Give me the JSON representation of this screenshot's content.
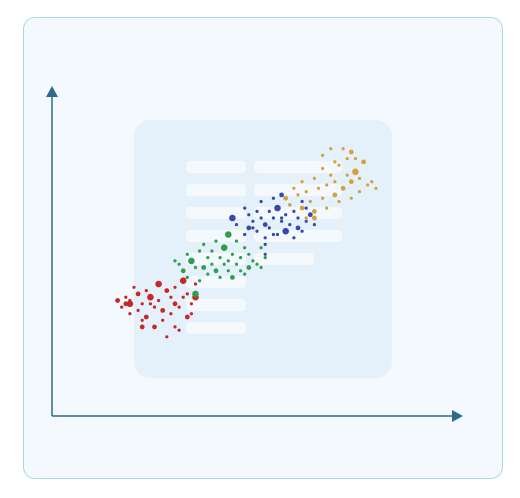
{
  "chart_data": {
    "type": "scatter",
    "title": "",
    "xlabel": "",
    "ylabel": "",
    "xlim": [
      0,
      100
    ],
    "ylim": [
      0,
      100
    ],
    "grid": false,
    "legend": "none",
    "axis_color": "#2d6a8e",
    "series": [
      {
        "color": "#c62828",
        "points": [
          [
            16,
            35
          ],
          [
            17,
            33
          ],
          [
            18,
            34
          ],
          [
            19,
            31
          ],
          [
            19,
            34
          ],
          [
            20,
            39
          ],
          [
            21,
            32
          ],
          [
            21,
            37
          ],
          [
            22,
            29
          ],
          [
            22,
            34
          ],
          [
            23,
            30
          ],
          [
            23,
            38
          ],
          [
            24,
            36
          ],
          [
            25,
            33
          ],
          [
            25,
            27
          ],
          [
            26,
            40
          ],
          [
            26,
            35
          ],
          [
            27,
            29
          ],
          [
            27,
            32
          ],
          [
            28,
            38
          ],
          [
            29,
            36
          ],
          [
            29,
            31
          ],
          [
            30,
            39
          ],
          [
            30,
            34
          ],
          [
            31,
            33
          ],
          [
            32,
            41
          ],
          [
            32,
            36
          ],
          [
            33,
            30
          ],
          [
            33,
            37
          ],
          [
            34,
            34
          ],
          [
            35,
            36
          ],
          [
            35,
            40
          ],
          [
            28,
            24
          ],
          [
            30,
            27
          ],
          [
            31,
            26
          ],
          [
            22,
            27
          ],
          [
            18,
            36
          ],
          [
            19,
            35
          ],
          [
            34,
            31
          ],
          [
            24,
            34
          ]
        ],
        "sizes": [
          2,
          1,
          2,
          1,
          3,
          1,
          1,
          2,
          1,
          1,
          2,
          1,
          3,
          1,
          2,
          3,
          1,
          1,
          2,
          2,
          1,
          1,
          1,
          2,
          1,
          3,
          1,
          2,
          1,
          1,
          3,
          1,
          1,
          1,
          1,
          2,
          1,
          1,
          1,
          1
        ]
      },
      {
        "color": "#2e9e4f",
        "points": [
          [
            30,
            47
          ],
          [
            31,
            46
          ],
          [
            32,
            44
          ],
          [
            33,
            49
          ],
          [
            33,
            42
          ],
          [
            34,
            47
          ],
          [
            35,
            45
          ],
          [
            36,
            50
          ],
          [
            36,
            41
          ],
          [
            37,
            52
          ],
          [
            37,
            45
          ],
          [
            38,
            48
          ],
          [
            38,
            43
          ],
          [
            39,
            50
          ],
          [
            39,
            46
          ],
          [
            40,
            53
          ],
          [
            40,
            44
          ],
          [
            41,
            48
          ],
          [
            41,
            42
          ],
          [
            42,
            46
          ],
          [
            42,
            51
          ],
          [
            43,
            44
          ],
          [
            43,
            47
          ],
          [
            44,
            49
          ],
          [
            44,
            42
          ],
          [
            45,
            53
          ],
          [
            45,
            46
          ],
          [
            46,
            44
          ],
          [
            46,
            48
          ],
          [
            47,
            51
          ],
          [
            47,
            43
          ],
          [
            48,
            45
          ],
          [
            48,
            49
          ],
          [
            49,
            47
          ],
          [
            50,
            46
          ],
          [
            51,
            45
          ],
          [
            51,
            51
          ],
          [
            52,
            48
          ],
          [
            35,
            37
          ],
          [
            43,
            55
          ]
        ],
        "sizes": [
          1,
          1,
          2,
          1,
          1,
          3,
          1,
          1,
          1,
          1,
          2,
          1,
          1,
          1,
          1,
          1,
          2,
          1,
          1,
          1,
          3,
          1,
          1,
          1,
          2,
          1,
          1,
          1,
          1,
          1,
          1,
          2,
          1,
          1,
          1,
          1,
          1,
          1,
          3,
          3
        ]
      },
      {
        "color": "#3949ab",
        "points": [
          [
            44,
            60
          ],
          [
            45,
            58
          ],
          [
            47,
            63
          ],
          [
            47,
            55
          ],
          [
            48,
            61
          ],
          [
            48,
            57
          ],
          [
            49,
            59
          ],
          [
            50,
            62
          ],
          [
            50,
            56
          ],
          [
            51,
            65
          ],
          [
            51,
            60
          ],
          [
            52,
            58
          ],
          [
            52,
            54
          ],
          [
            53,
            62
          ],
          [
            53,
            57
          ],
          [
            54,
            60
          ],
          [
            54,
            66
          ],
          [
            55,
            55
          ],
          [
            55,
            63
          ],
          [
            56,
            59
          ],
          [
            56,
            67
          ],
          [
            57,
            56
          ],
          [
            57,
            61
          ],
          [
            58,
            64
          ],
          [
            58,
            58
          ],
          [
            59,
            62
          ],
          [
            60,
            57
          ],
          [
            60,
            60
          ],
          [
            61,
            65
          ],
          [
            62,
            59
          ],
          [
            62,
            63
          ],
          [
            63,
            61
          ],
          [
            64,
            58
          ],
          [
            59,
            54
          ],
          [
            52,
            49
          ],
          [
            52,
            52
          ],
          [
            49,
            57
          ],
          [
            56,
            60
          ],
          [
            61,
            56
          ],
          [
            54,
            55
          ]
        ],
        "sizes": [
          3,
          1,
          1,
          1,
          1,
          2,
          1,
          1,
          1,
          1,
          1,
          2,
          1,
          1,
          1,
          1,
          1,
          1,
          3,
          1,
          2,
          3,
          1,
          1,
          1,
          1,
          2,
          1,
          1,
          1,
          1,
          2,
          1,
          1,
          1,
          1,
          1,
          1,
          1,
          1
        ]
      },
      {
        "color": "#d4a23c",
        "points": [
          [
            57,
            66
          ],
          [
            58,
            64
          ],
          [
            59,
            69
          ],
          [
            60,
            67
          ],
          [
            61,
            71
          ],
          [
            61,
            63
          ],
          [
            62,
            68
          ],
          [
            63,
            65
          ],
          [
            64,
            72
          ],
          [
            64,
            62
          ],
          [
            65,
            69
          ],
          [
            66,
            75
          ],
          [
            66,
            66
          ],
          [
            67,
            70
          ],
          [
            67,
            63
          ],
          [
            68,
            73
          ],
          [
            69,
            67
          ],
          [
            69,
            71
          ],
          [
            70,
            76
          ],
          [
            70,
            65
          ],
          [
            71,
            69
          ],
          [
            72,
            73
          ],
          [
            72,
            78
          ],
          [
            73,
            71
          ],
          [
            73,
            66
          ],
          [
            74,
            74
          ],
          [
            75,
            68
          ],
          [
            75,
            72
          ],
          [
            76,
            77
          ],
          [
            77,
            70
          ],
          [
            66,
            79
          ],
          [
            68,
            81
          ],
          [
            69,
            77
          ],
          [
            71,
            81
          ],
          [
            73,
            80
          ],
          [
            74,
            78
          ],
          [
            64,
            60
          ],
          [
            62,
            60
          ],
          [
            78,
            71
          ],
          [
            79,
            69
          ]
        ],
        "sizes": [
          2,
          1,
          1,
          1,
          1,
          2,
          1,
          1,
          1,
          2,
          1,
          1,
          1,
          1,
          1,
          1,
          2,
          1,
          1,
          1,
          2,
          1,
          1,
          2,
          1,
          3,
          1,
          1,
          2,
          1,
          1,
          1,
          1,
          1,
          2,
          1,
          2,
          1,
          1,
          1
        ]
      }
    ]
  }
}
